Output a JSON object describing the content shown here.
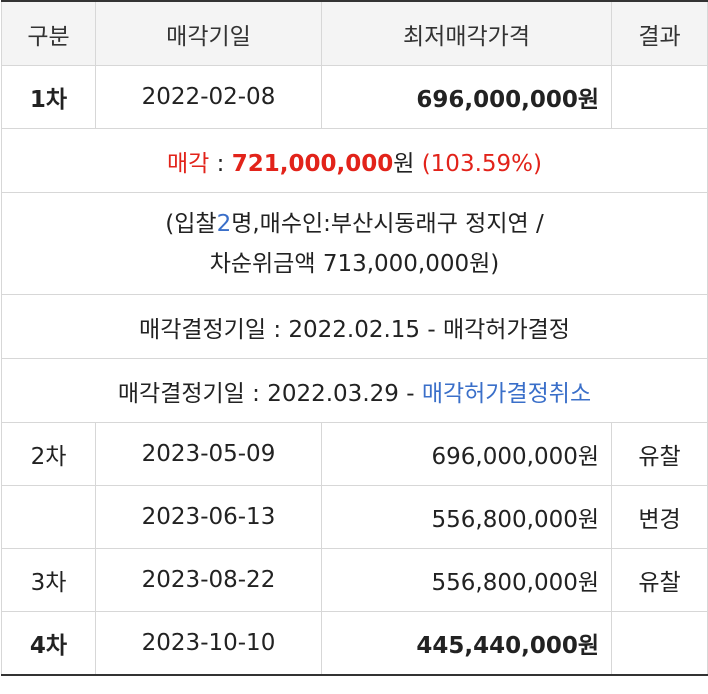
{
  "headers": {
    "col1": "구분",
    "col2": "매각기일",
    "col3": "최저매각가격",
    "col4": "결과"
  },
  "rows": [
    {
      "round": "1차",
      "date": "2022-02-08",
      "price": "696,000,000원",
      "result": ""
    },
    {
      "round": "2차",
      "date": "2023-05-09",
      "price": "696,000,000원",
      "result": "유찰"
    },
    {
      "round": "",
      "date": "2023-06-13",
      "price": "556,800,000원",
      "result": "변경"
    },
    {
      "round": "3차",
      "date": "2023-08-22",
      "price": "556,800,000원",
      "result": "유찰"
    },
    {
      "round": "4차",
      "date": "2023-10-10",
      "price": "445,440,000원",
      "result": ""
    }
  ],
  "sale": {
    "label": "매각",
    "sep": " : ",
    "amount": "721,000,000",
    "unit": "원",
    "ratio": "(103.59%)"
  },
  "bid": {
    "prefix": "(입찰",
    "count": "2",
    "suffix": "명,매수인:부산시동래구 정지연 /",
    "line2": "차순위금액 713,000,000원)"
  },
  "decision1": "매각결정기일 : 2022.02.15 - 매각허가결정",
  "decision2": {
    "text": "매각결정기일 : 2022.03.29 - ",
    "link": "매각허가결정취소"
  }
}
